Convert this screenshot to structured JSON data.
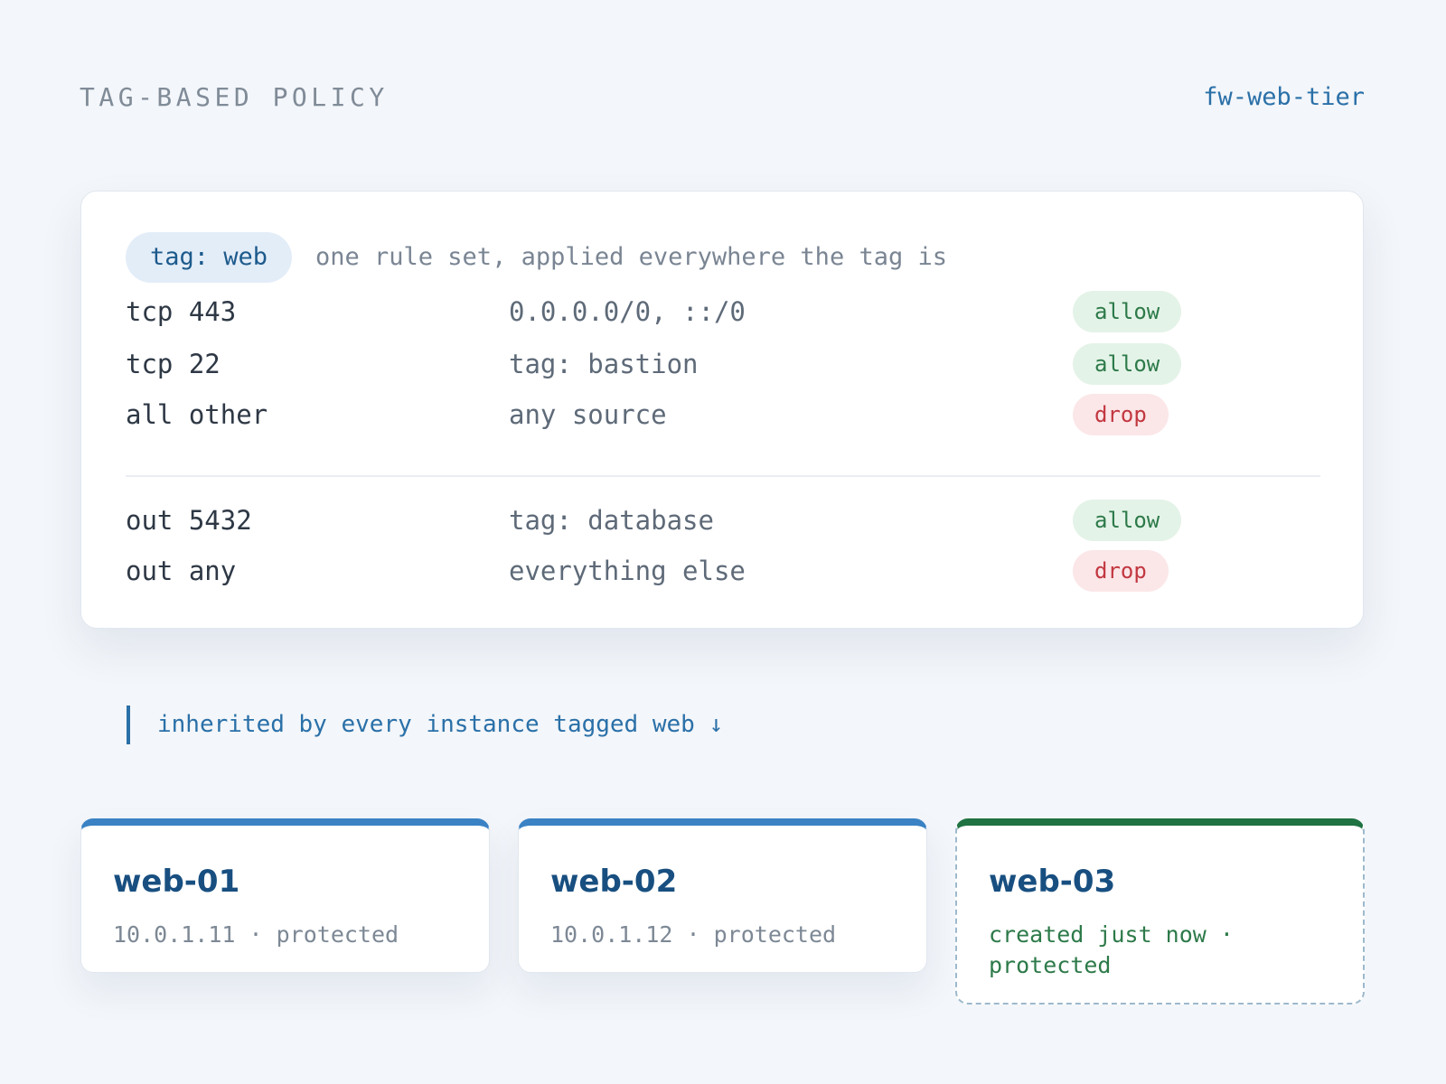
{
  "header": {
    "title": "TAG-BASED POLICY",
    "policy_id": "fw-web-tier"
  },
  "policy": {
    "tag_label": "tag: web",
    "description": "one rule set, applied everywhere the tag is",
    "inbound_rules": [
      {
        "port": "tcp 443",
        "source": "0.0.0.0/0, ::/0",
        "action": "allow"
      },
      {
        "port": "tcp 22",
        "source": "tag: bastion",
        "action": "allow"
      },
      {
        "port": "all other",
        "source": "any source",
        "action": "drop"
      }
    ],
    "outbound_rules": [
      {
        "port": "out 5432",
        "source": "tag: database",
        "action": "allow"
      },
      {
        "port": "out any",
        "source": "everything else",
        "action": "drop"
      }
    ]
  },
  "callout": "inherited by every instance tagged web ↓",
  "instances": [
    {
      "name": "web-01",
      "meta": "10.0.1.11 · protected"
    },
    {
      "name": "web-02",
      "meta": "10.0.1.12 · protected"
    },
    {
      "name": "web-03",
      "meta": "created just now · protected"
    }
  ],
  "colors": {
    "background": "#f3f6fa",
    "accent_blue": "#2a70a8",
    "card_top_blue": "#3a82c4",
    "new_instance_green": "#1f7242",
    "allow_text": "#2d7a49",
    "drop_text": "#c2373f"
  }
}
